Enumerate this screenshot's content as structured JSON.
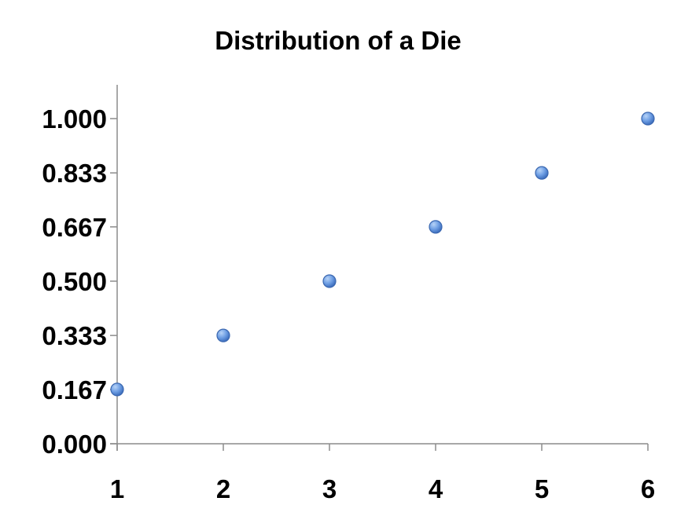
{
  "chart_data": {
    "type": "scatter",
    "title": "Distribution of a Die",
    "xlabel": "",
    "ylabel": "",
    "x": [
      1,
      2,
      3,
      4,
      5,
      6
    ],
    "series": [
      {
        "values": [
          0.167,
          0.333,
          0.5,
          0.667,
          0.833,
          1.0
        ]
      }
    ],
    "x_ticks": [
      "1",
      "2",
      "3",
      "4",
      "5",
      "6"
    ],
    "y_ticks": [
      "0.000",
      "0.167",
      "0.333",
      "0.500",
      "0.667",
      "0.833",
      "1.000"
    ],
    "y_tick_values": [
      0,
      0.167,
      0.333,
      0.5,
      0.667,
      0.833,
      1.0
    ],
    "xlim": [
      1,
      6
    ],
    "ylim": [
      0,
      1.1
    ],
    "grid": false,
    "legend": "none",
    "marker_color": "#5b8fdc"
  }
}
